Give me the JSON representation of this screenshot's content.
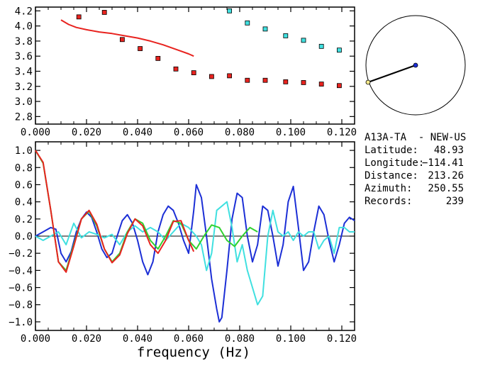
{
  "chart_data": [
    {
      "type": "scatter",
      "xlim": [
        0.0,
        0.125
      ],
      "ylim": [
        2.7,
        4.25
      ],
      "x_ticks": [
        "0.000",
        "0.020",
        "0.040",
        "0.060",
        "0.080",
        "0.100",
        "0.120"
      ],
      "x_tick_values": [
        0.0,
        0.02,
        0.04,
        0.06,
        0.08,
        0.1,
        0.12
      ],
      "y_ticks": [
        "2.8",
        "3.0",
        "3.2",
        "3.4",
        "3.6",
        "3.8",
        "4.0",
        "4.2"
      ],
      "y_tick_values": [
        2.8,
        3.0,
        3.2,
        3.4,
        3.6,
        3.8,
        4.0,
        4.2
      ],
      "series": [
        {
          "kind": "points",
          "color": "#e8231f",
          "x": [
            0.017,
            0.027,
            0.034,
            0.041,
            0.048,
            0.055,
            0.062,
            0.069,
            0.076,
            0.083,
            0.09,
            0.098,
            0.105,
            0.112,
            0.119
          ],
          "y": [
            4.12,
            4.18,
            3.82,
            3.7,
            3.57,
            3.43,
            3.38,
            3.33,
            3.34,
            3.28,
            3.28,
            3.26,
            3.25,
            3.23,
            3.21
          ]
        },
        {
          "kind": "points",
          "color": "#40e0e0",
          "x": [
            0.076,
            0.083,
            0.09,
            0.098,
            0.105,
            0.112,
            0.119
          ],
          "y": [
            4.2,
            4.04,
            3.96,
            3.87,
            3.81,
            3.73,
            3.68
          ]
        },
        {
          "kind": "line",
          "color": "#e8231f",
          "x": [
            0.01,
            0.013,
            0.016,
            0.02,
            0.025,
            0.03,
            0.035,
            0.04,
            0.045,
            0.05,
            0.055,
            0.06,
            0.062
          ],
          "y": [
            4.08,
            4.02,
            3.98,
            3.95,
            3.92,
            3.9,
            3.87,
            3.84,
            3.8,
            3.75,
            3.69,
            3.63,
            3.6
          ]
        }
      ]
    },
    {
      "type": "line",
      "xlim": [
        0.0,
        0.125
      ],
      "ylim": [
        -1.1,
        1.1
      ],
      "xlabel": "frequency (Hz)",
      "x_ticks": [
        "0.000",
        "0.020",
        "0.040",
        "0.060",
        "0.080",
        "0.100",
        "0.120"
      ],
      "x_tick_values": [
        0.0,
        0.02,
        0.04,
        0.06,
        0.08,
        0.1,
        0.12
      ],
      "y_ticks": [
        "1.0",
        "0.8",
        "0.6",
        "0.4",
        "0.2",
        "0.0",
        "−0.2",
        "−0.4",
        "−0.6",
        "−0.8",
        "−1.0"
      ],
      "y_tick_values": [
        1.0,
        0.8,
        0.6,
        0.4,
        0.2,
        0.0,
        -0.2,
        -0.4,
        -0.6,
        -0.8,
        -1.0
      ],
      "zero_line": true,
      "series": [
        {
          "color": "#1c2fd6",
          "x": [
            0.0,
            0.003,
            0.006,
            0.008,
            0.01,
            0.012,
            0.014,
            0.016,
            0.018,
            0.02,
            0.022,
            0.024,
            0.026,
            0.028,
            0.03,
            0.032,
            0.034,
            0.036,
            0.038,
            0.04,
            0.042,
            0.044,
            0.046,
            0.048,
            0.05,
            0.052,
            0.054,
            0.056,
            0.058,
            0.06,
            0.062,
            0.063,
            0.065,
            0.067,
            0.069,
            0.071,
            0.072,
            0.073,
            0.075,
            0.077,
            0.079,
            0.081,
            0.083,
            0.085,
            0.087,
            0.089,
            0.091,
            0.093,
            0.095,
            0.097,
            0.099,
            0.101,
            0.103,
            0.105,
            0.107,
            0.109,
            0.111,
            0.113,
            0.115,
            0.117,
            0.119,
            0.121,
            0.123,
            0.125
          ],
          "y": [
            0.0,
            0.05,
            0.1,
            0.08,
            -0.2,
            -0.3,
            -0.18,
            0.05,
            0.2,
            0.28,
            0.22,
            0.05,
            -0.15,
            -0.25,
            -0.2,
            0.0,
            0.18,
            0.25,
            0.15,
            -0.05,
            -0.3,
            -0.45,
            -0.3,
            0.05,
            0.25,
            0.35,
            0.3,
            0.15,
            -0.05,
            -0.2,
            0.3,
            0.6,
            0.45,
            0.0,
            -0.5,
            -0.85,
            -1.0,
            -0.95,
            -0.4,
            0.2,
            0.5,
            0.45,
            0.0,
            -0.3,
            -0.1,
            0.35,
            0.3,
            0.0,
            -0.35,
            -0.1,
            0.4,
            0.58,
            0.1,
            -0.4,
            -0.3,
            0.05,
            0.35,
            0.25,
            -0.05,
            -0.3,
            -0.1,
            0.15,
            0.22,
            0.18
          ]
        },
        {
          "color": "#40e0e0",
          "x": [
            0.0,
            0.003,
            0.006,
            0.009,
            0.012,
            0.015,
            0.018,
            0.021,
            0.024,
            0.027,
            0.03,
            0.033,
            0.036,
            0.039,
            0.042,
            0.045,
            0.048,
            0.051,
            0.054,
            0.057,
            0.06,
            0.063,
            0.065,
            0.067,
            0.069,
            0.071,
            0.073,
            0.075,
            0.077,
            0.079,
            0.081,
            0.083,
            0.085,
            0.087,
            0.089,
            0.091,
            0.093,
            0.095,
            0.097,
            0.099,
            0.101,
            0.103,
            0.105,
            0.107,
            0.109,
            0.111,
            0.113,
            0.115,
            0.117,
            0.119,
            0.121,
            0.123,
            0.125
          ],
          "y": [
            0.0,
            -0.05,
            0.0,
            0.05,
            -0.1,
            0.15,
            -0.02,
            0.05,
            0.02,
            -0.02,
            0.02,
            -0.1,
            0.05,
            0.12,
            0.05,
            0.1,
            0.05,
            -0.05,
            0.05,
            0.15,
            0.1,
            0.0,
            -0.1,
            -0.4,
            -0.2,
            0.3,
            0.35,
            0.4,
            0.1,
            -0.3,
            -0.1,
            -0.4,
            -0.6,
            -0.8,
            -0.7,
            0.0,
            0.3,
            0.05,
            0.0,
            0.05,
            -0.05,
            0.05,
            0.0,
            0.05,
            0.05,
            -0.15,
            -0.05,
            0.0,
            -0.2,
            0.1,
            0.1,
            0.05,
            0.05
          ]
        },
        {
          "color": "#2fd12f",
          "x": [
            0.0,
            0.003,
            0.006,
            0.009,
            0.012,
            0.015,
            0.018,
            0.021,
            0.024,
            0.027,
            0.03,
            0.033,
            0.036,
            0.039,
            0.042,
            0.045,
            0.048,
            0.051,
            0.054,
            0.057,
            0.06,
            0.063,
            0.066,
            0.069,
            0.072,
            0.075,
            0.078,
            0.081,
            0.084,
            0.087
          ],
          "y": [
            1.0,
            0.85,
            0.3,
            -0.3,
            -0.4,
            -0.1,
            0.2,
            0.29,
            0.12,
            -0.15,
            -0.3,
            -0.2,
            0.05,
            0.2,
            0.15,
            -0.05,
            -0.15,
            0.0,
            0.18,
            0.15,
            -0.05,
            -0.15,
            0.0,
            0.13,
            0.1,
            -0.05,
            -0.12,
            0.0,
            0.1,
            0.05
          ]
        },
        {
          "color": "#e8231f",
          "x": [
            0.0,
            0.003,
            0.006,
            0.009,
            0.012,
            0.015,
            0.018,
            0.021,
            0.024,
            0.027,
            0.03,
            0.033,
            0.036,
            0.039,
            0.042,
            0.045,
            0.048,
            0.051,
            0.054,
            0.057,
            0.06,
            0.062
          ],
          "y": [
            1.0,
            0.86,
            0.3,
            -0.3,
            -0.42,
            -0.12,
            0.2,
            0.3,
            0.14,
            -0.15,
            -0.31,
            -0.22,
            0.03,
            0.2,
            0.12,
            -0.1,
            -0.2,
            -0.05,
            0.17,
            0.18,
            -0.05,
            -0.18
          ]
        }
      ]
    }
  ],
  "station": {
    "name": "A13A-TA  - NEW-US",
    "latitude_label": "Latitude:",
    "latitude_value": "48.93",
    "longitude_label": "Longitude:",
    "longitude_value": "−114.41",
    "distance_label": "Distance:",
    "distance_value": "213.26",
    "azimuth_label": "Azimuth:",
    "azimuth_value": "250.55",
    "records_label": "Records:",
    "records_value": "239"
  },
  "colors": {
    "red": "#e8231f",
    "cyan": "#40e0e0",
    "blue": "#1c2fd6",
    "green": "#2fd12f"
  }
}
